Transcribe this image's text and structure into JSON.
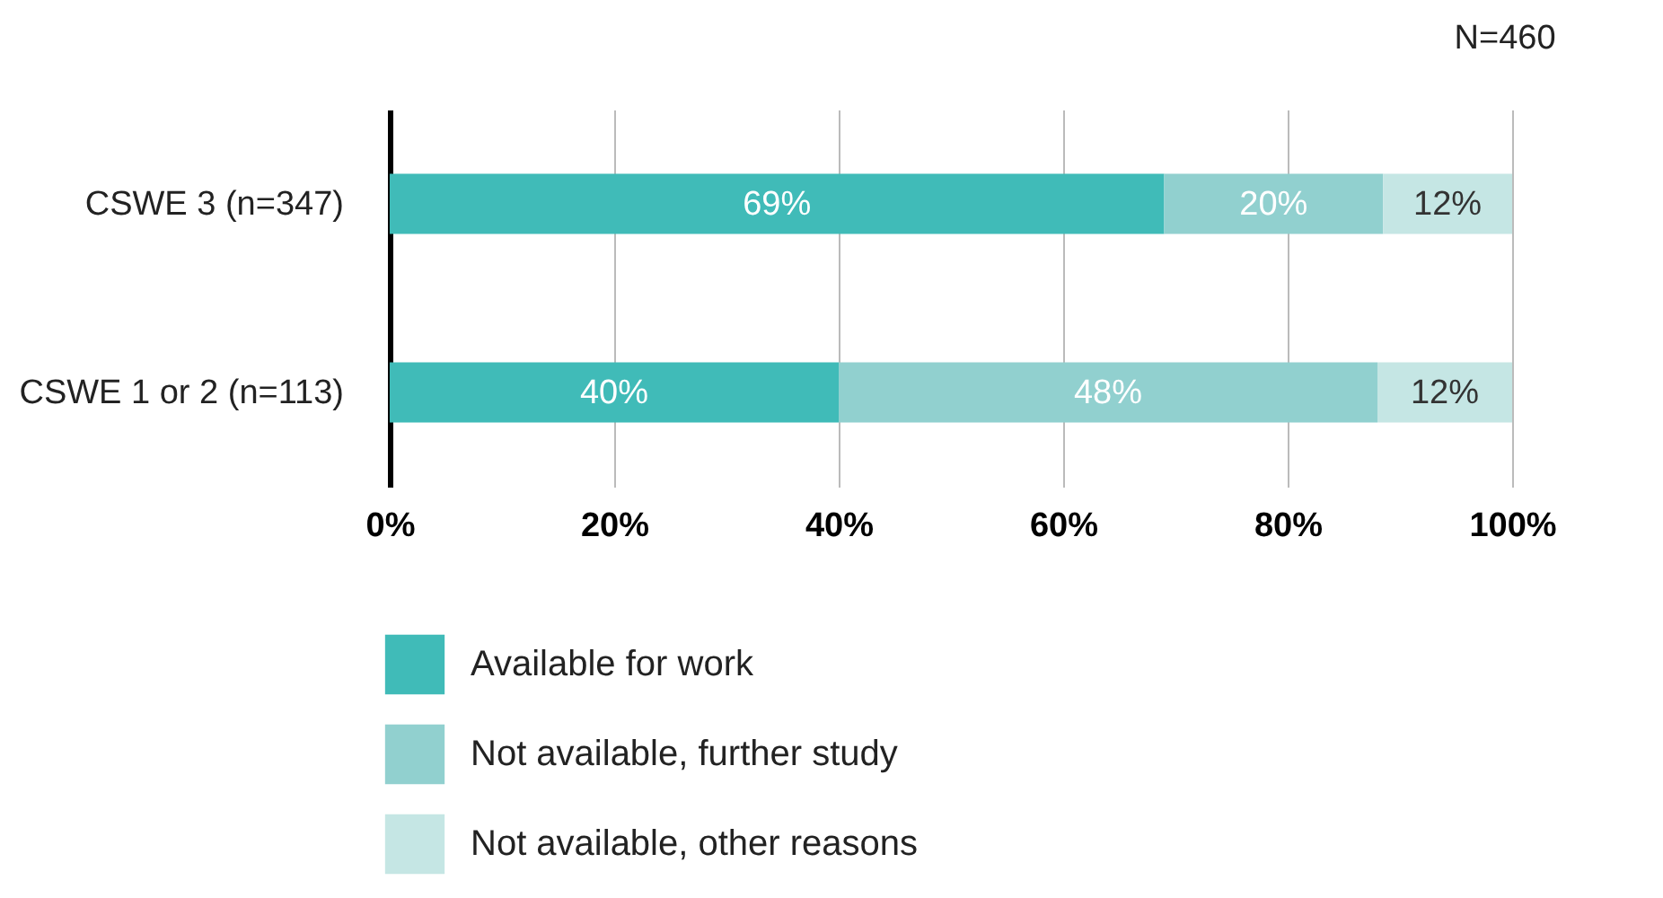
{
  "chart_data": {
    "type": "bar",
    "orientation": "horizontal",
    "stacked": true,
    "categories": [
      "CSWE 3 (n=347)",
      "CSWE 1 or 2 (n=113)"
    ],
    "series": [
      {
        "name": "Available for work",
        "color": "#40bbb8",
        "values": [
          69,
          40
        ],
        "value_labels": [
          "69%",
          "40%"
        ]
      },
      {
        "name": "Not available, further study",
        "color": "#91d0cf",
        "values": [
          19.5,
          48
        ],
        "value_labels": [
          "20%",
          "48%"
        ]
      },
      {
        "name": "Not available, other reasons",
        "color": "#c5e6e4",
        "values": [
          11.5,
          12
        ],
        "value_labels": [
          "12%",
          "12%"
        ]
      }
    ],
    "xlim": [
      0,
      100
    ],
    "xticks": [
      {
        "value": 0,
        "label": "0%"
      },
      {
        "value": 20,
        "label": "20%"
      },
      {
        "value": 40,
        "label": "40%"
      },
      {
        "value": 60,
        "label": "60%"
      },
      {
        "value": 80,
        "label": "80%"
      },
      {
        "value": 100,
        "label": "100%"
      }
    ],
    "grid": "x",
    "legend": "bottom",
    "annotations": [
      "N=460"
    ]
  }
}
